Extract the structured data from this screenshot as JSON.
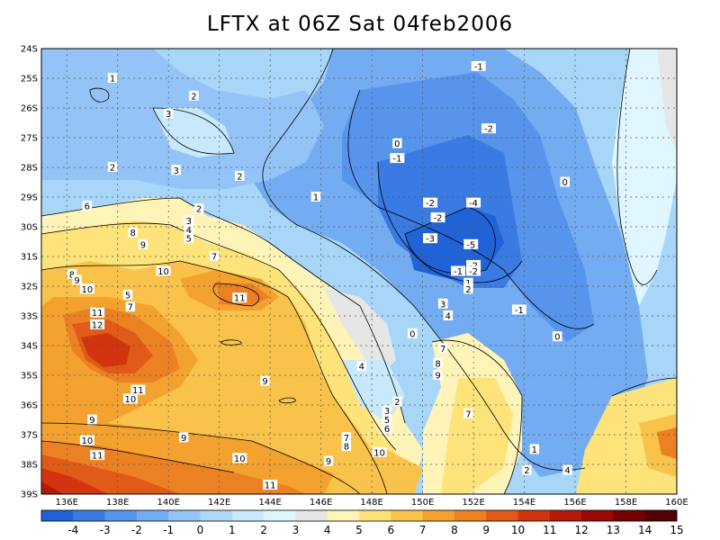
{
  "title": "LFTX at 06Z Sat 04feb2006",
  "map": {
    "lat_labels": [
      "24S",
      "25S",
      "26S",
      "27S",
      "28S",
      "29S",
      "30S",
      "31S",
      "32S",
      "33S",
      "34S",
      "35S",
      "36S",
      "37S",
      "38S",
      "39S"
    ],
    "lon_labels": [
      "136E",
      "138E",
      "140E",
      "142E",
      "144E",
      "146E",
      "148E",
      "150E",
      "152E",
      "154E",
      "156E",
      "158E",
      "160E"
    ],
    "lon_range": [
      135,
      160
    ],
    "lat_range": [
      -39,
      -24
    ],
    "grid": true
  },
  "colorbar": {
    "labels": [
      "-4",
      "-3",
      "-2",
      "-1",
      "0",
      "1",
      "2",
      "3",
      "4",
      "5",
      "6",
      "7",
      "8",
      "9",
      "10",
      "11",
      "12",
      "13",
      "14",
      "15"
    ],
    "colors": [
      "#1f63d6",
      "#3a7ae3",
      "#5794ec",
      "#74acf2",
      "#94c4f7",
      "#b0d8f9",
      "#c8e8fc",
      "#dff6ff",
      "#e6e6e6",
      "#fff4b8",
      "#fde37a",
      "#f9c24a",
      "#f3a22f",
      "#ec8124",
      "#e05a19",
      "#d1340f",
      "#b81807",
      "#9a0a02",
      "#760000",
      "#500000"
    ]
  },
  "contour_labels": [
    {
      "t": "-1",
      "lon": 152.2,
      "lat": -24.6
    },
    {
      "t": "1",
      "lon": 137.8,
      "lat": -25.0
    },
    {
      "t": "2",
      "lon": 141.0,
      "lat": -25.6
    },
    {
      "t": "3",
      "lon": 140.0,
      "lat": -26.2
    },
    {
      "t": "-2",
      "lon": 152.6,
      "lat": -26.7
    },
    {
      "t": "0",
      "lon": 149.0,
      "lat": -27.2
    },
    {
      "t": "-1",
      "lon": 149.0,
      "lat": -27.7
    },
    {
      "t": "2",
      "lon": 137.8,
      "lat": -28.0
    },
    {
      "t": "3",
      "lon": 140.3,
      "lat": -28.1
    },
    {
      "t": "2",
      "lon": 142.8,
      "lat": -28.3
    },
    {
      "t": "0",
      "lon": 155.6,
      "lat": -28.5
    },
    {
      "t": "1",
      "lon": 145.8,
      "lat": -29.0
    },
    {
      "t": "-2",
      "lon": 150.3,
      "lat": -29.2
    },
    {
      "t": "-4",
      "lon": 152.0,
      "lat": -29.2
    },
    {
      "t": "6",
      "lon": 136.8,
      "lat": -29.3
    },
    {
      "t": "2",
      "lon": 141.2,
      "lat": -29.4
    },
    {
      "t": "-2",
      "lon": 150.6,
      "lat": -29.7
    },
    {
      "t": "3",
      "lon": 140.8,
      "lat": -29.8
    },
    {
      "t": "4",
      "lon": 140.8,
      "lat": -30.1
    },
    {
      "t": "5",
      "lon": 140.8,
      "lat": -30.4
    },
    {
      "t": "8",
      "lon": 138.6,
      "lat": -30.2
    },
    {
      "t": "-3",
      "lon": 150.3,
      "lat": -30.4
    },
    {
      "t": "9",
      "lon": 139.0,
      "lat": -30.6
    },
    {
      "t": "-5",
      "lon": 151.9,
      "lat": -30.6
    },
    {
      "t": "7",
      "lon": 141.8,
      "lat": -31.0
    },
    {
      "t": "-2",
      "lon": 152.0,
      "lat": -31.3
    },
    {
      "t": "10",
      "lon": 139.8,
      "lat": -31.5
    },
    {
      "t": "-1",
      "lon": 151.4,
      "lat": -31.5
    },
    {
      "t": "8",
      "lon": 136.2,
      "lat": -31.6
    },
    {
      "t": "9",
      "lon": 136.4,
      "lat": -31.8
    },
    {
      "t": "-2",
      "lon": 152.0,
      "lat": -31.5
    },
    {
      "t": "1",
      "lon": 151.8,
      "lat": -31.9
    },
    {
      "t": "2",
      "lon": 151.8,
      "lat": -32.1
    },
    {
      "t": "10",
      "lon": 136.8,
      "lat": -32.1
    },
    {
      "t": "11",
      "lon": 142.8,
      "lat": -32.4
    },
    {
      "t": "5",
      "lon": 138.4,
      "lat": -32.3
    },
    {
      "t": "7",
      "lon": 138.5,
      "lat": -32.7
    },
    {
      "t": "3",
      "lon": 150.8,
      "lat": -32.6
    },
    {
      "t": "-1",
      "lon": 153.8,
      "lat": -32.8
    },
    {
      "t": "11",
      "lon": 137.2,
      "lat": -32.9
    },
    {
      "t": "4",
      "lon": 151.0,
      "lat": -33.0
    },
    {
      "t": "12",
      "lon": 137.2,
      "lat": -33.3
    },
    {
      "t": "0",
      "lon": 149.6,
      "lat": -33.6
    },
    {
      "t": "0",
      "lon": 155.3,
      "lat": -33.7
    },
    {
      "t": "7",
      "lon": 150.8,
      "lat": -34.1
    },
    {
      "t": "4",
      "lon": 147.6,
      "lat": -34.7
    },
    {
      "t": "8",
      "lon": 150.6,
      "lat": -34.6
    },
    {
      "t": "9",
      "lon": 150.6,
      "lat": -35.0
    },
    {
      "t": "9",
      "lon": 143.8,
      "lat": -35.2
    },
    {
      "t": "11",
      "lon": 138.8,
      "lat": -35.5
    },
    {
      "t": "10",
      "lon": 138.5,
      "lat": -35.8
    },
    {
      "t": "2",
      "lon": 149.0,
      "lat": -35.9
    },
    {
      "t": "3",
      "lon": 148.6,
      "lat": -36.2
    },
    {
      "t": "5",
      "lon": 148.6,
      "lat": -36.5
    },
    {
      "t": "7",
      "lon": 151.8,
      "lat": -36.3
    },
    {
      "t": "9",
      "lon": 137.0,
      "lat": -36.5
    },
    {
      "t": "6",
      "lon": 148.6,
      "lat": -36.8
    },
    {
      "t": "9",
      "lon": 140.6,
      "lat": -37.1
    },
    {
      "t": "7",
      "lon": 147.0,
      "lat": -37.1
    },
    {
      "t": "10",
      "lon": 136.8,
      "lat": -37.2
    },
    {
      "t": "8",
      "lon": 147.0,
      "lat": -37.4
    },
    {
      "t": "1",
      "lon": 154.4,
      "lat": -37.5
    },
    {
      "t": "10",
      "lon": 148.3,
      "lat": -37.6
    },
    {
      "t": "11",
      "lon": 137.2,
      "lat": -37.7
    },
    {
      "t": "10",
      "lon": 142.8,
      "lat": -37.8
    },
    {
      "t": "9",
      "lon": 146.3,
      "lat": -37.9
    },
    {
      "t": "2",
      "lon": 154.1,
      "lat": -38.2
    },
    {
      "t": "4",
      "lon": 155.7,
      "lat": -38.2
    },
    {
      "t": "11",
      "lon": 144.0,
      "lat": -38.7
    }
  ]
}
